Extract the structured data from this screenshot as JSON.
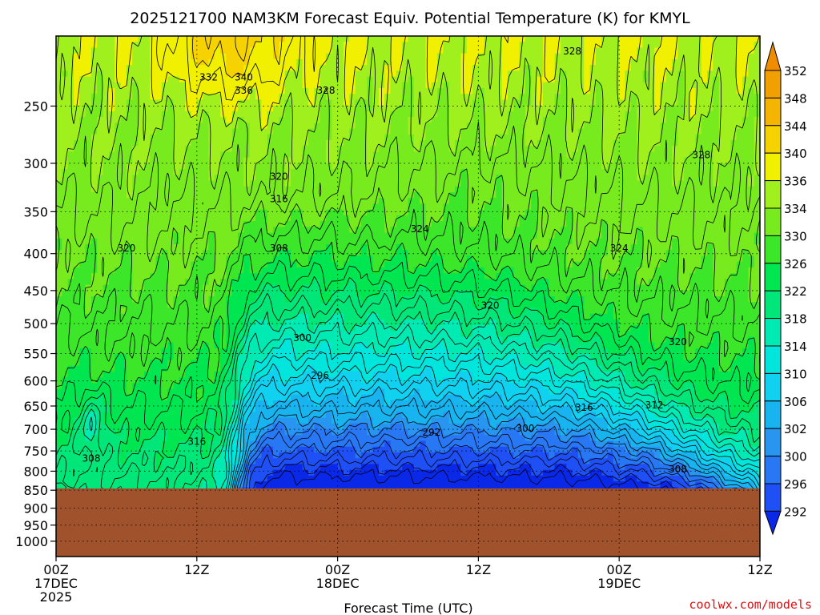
{
  "title": "2025121700 NAM3KM Forecast Equiv. Potential Temperature (K) for KMYL",
  "credit": "coolwx.com/models",
  "chart_data": {
    "type": "heatmap",
    "title": "2025121700 NAM3KM Forecast Equiv. Potential Temperature (K) for KMYL",
    "xlabel": "Forecast Time (UTC)",
    "ylabel": "",
    "x_ticks": [
      {
        "hour": 0,
        "line1": "00Z",
        "line2": "17DEC",
        "line3": "2025"
      },
      {
        "hour": 12,
        "line1": "12Z",
        "line2": "",
        "line3": ""
      },
      {
        "hour": 24,
        "line1": "00Z",
        "line2": "18DEC",
        "line3": ""
      },
      {
        "hour": 36,
        "line1": "12Z",
        "line2": "",
        "line3": ""
      },
      {
        "hour": 48,
        "line1": "00Z",
        "line2": "19DEC",
        "line3": ""
      },
      {
        "hour": 60,
        "line1": "12Z",
        "line2": "",
        "line3": ""
      }
    ],
    "xlim": [
      0,
      60
    ],
    "y_ticks": [
      250,
      300,
      350,
      400,
      450,
      500,
      550,
      600,
      650,
      700,
      750,
      800,
      850,
      900,
      950,
      1000
    ],
    "ylim": [
      200,
      1050
    ],
    "y_scale": "log",
    "y_inverted": true,
    "grid": true,
    "terrain_pressure": 845,
    "terrain_color": "#a0522d",
    "colorbar": {
      "levels": [
        292,
        296,
        300,
        302,
        306,
        310,
        314,
        318,
        322,
        326,
        330,
        334,
        336,
        340,
        344,
        348,
        352
      ],
      "colors": [
        "#0a28e8",
        "#1e50f5",
        "#2878f5",
        "#2896f0",
        "#18b4f0",
        "#10d2f0",
        "#00e6dc",
        "#00ebb4",
        "#00e678",
        "#00e650",
        "#3ce628",
        "#78eb1e",
        "#a0f01e",
        "#f0f000",
        "#f5d200",
        "#f5b400",
        "#f0a000",
        "#f08c00"
      ],
      "placement": "right"
    },
    "contour_labels": [
      {
        "value": "332",
        "hour": 13.0,
        "p": 228
      },
      {
        "value": "340",
        "hour": 16.0,
        "p": 228
      },
      {
        "value": "336",
        "hour": 16.0,
        "p": 238
      },
      {
        "value": "328",
        "hour": 23.0,
        "p": 238
      },
      {
        "value": "328",
        "hour": 44.0,
        "p": 210
      },
      {
        "value": "328",
        "hour": 55.0,
        "p": 292
      },
      {
        "value": "320",
        "hour": 19.0,
        "p": 313
      },
      {
        "value": "316",
        "hour": 19.0,
        "p": 336
      },
      {
        "value": "320",
        "hour": 6.0,
        "p": 393
      },
      {
        "value": "324",
        "hour": 31.0,
        "p": 370
      },
      {
        "value": "324",
        "hour": 48.0,
        "p": 393
      },
      {
        "value": "308",
        "hour": 19.0,
        "p": 393
      },
      {
        "value": "320",
        "hour": 37.0,
        "p": 472
      },
      {
        "value": "320",
        "hour": 53.0,
        "p": 530
      },
      {
        "value": "300",
        "hour": 21.0,
        "p": 523
      },
      {
        "value": "296",
        "hour": 22.5,
        "p": 590
      },
      {
        "value": "316",
        "hour": 45.0,
        "p": 653
      },
      {
        "value": "312",
        "hour": 51.0,
        "p": 648
      },
      {
        "value": "300",
        "hour": 40.0,
        "p": 698
      },
      {
        "value": "292",
        "hour": 32.0,
        "p": 707
      },
      {
        "value": "316",
        "hour": 12.0,
        "p": 728
      },
      {
        "value": "308",
        "hour": 3.0,
        "p": 768
      },
      {
        "value": "308",
        "hour": 53.0,
        "p": 795
      }
    ]
  }
}
